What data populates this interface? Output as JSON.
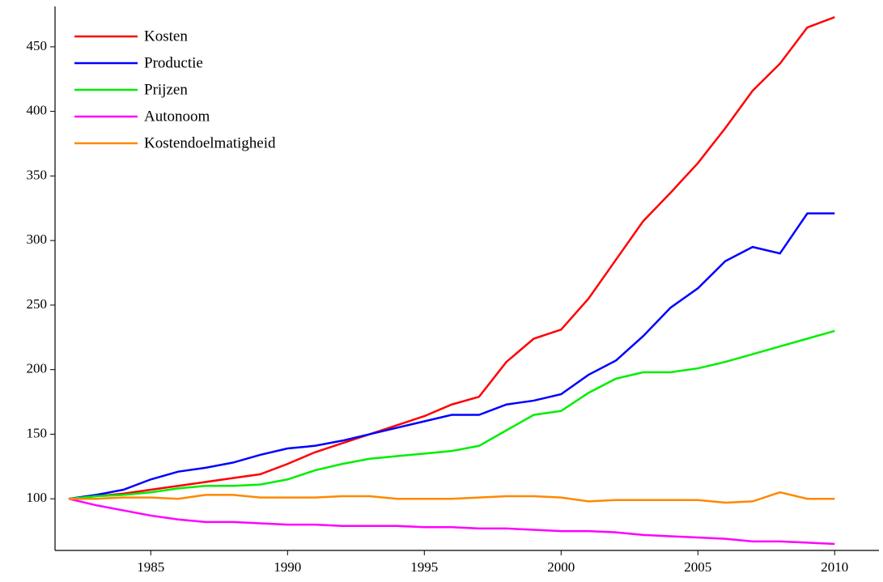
{
  "chart_data": {
    "type": "line",
    "x": [
      1982,
      1983,
      1984,
      1985,
      1986,
      1987,
      1988,
      1989,
      1990,
      1991,
      1992,
      1993,
      1994,
      1995,
      1996,
      1997,
      1998,
      1999,
      2000,
      2001,
      2002,
      2003,
      2004,
      2005,
      2006,
      2007,
      2008,
      2009,
      2010
    ],
    "series": [
      {
        "name": "Kosten",
        "color": "#ff0000",
        "values": [
          100,
          102,
          104,
          107,
          110,
          113,
          116,
          119,
          127,
          136,
          143,
          150,
          157,
          164,
          173,
          179,
          206,
          224,
          231,
          255,
          285,
          315,
          337,
          360,
          387,
          416,
          437,
          465,
          473
        ]
      },
      {
        "name": "Productie",
        "color": "#0000ff",
        "values": [
          100,
          103,
          107,
          115,
          121,
          124,
          128,
          134,
          139,
          141,
          145,
          150,
          155,
          160,
          165,
          165,
          173,
          176,
          181,
          196,
          207,
          226,
          248,
          263,
          284,
          295,
          290,
          321,
          321
        ]
      },
      {
        "name": "Prijzen",
        "color": "#00ee00",
        "values": [
          100,
          102,
          103,
          105,
          108,
          110,
          110,
          111,
          115,
          122,
          127,
          131,
          133,
          135,
          137,
          141,
          153,
          165,
          168,
          182,
          193,
          198,
          198,
          201,
          206,
          212,
          218,
          224,
          230
        ]
      },
      {
        "name": "Autonoom",
        "color": "#ff00ff",
        "values": [
          100,
          95,
          91,
          87,
          84,
          82,
          82,
          81,
          80,
          80,
          79,
          79,
          79,
          78,
          78,
          77,
          77,
          76,
          75,
          75,
          74,
          72,
          71,
          70,
          69,
          67,
          67,
          66,
          65
        ]
      },
      {
        "name": "Kostendoelmatigheid",
        "color": "#ff8800",
        "values": [
          100,
          100,
          101,
          101,
          100,
          103,
          103,
          101,
          101,
          101,
          102,
          102,
          100,
          100,
          100,
          101,
          102,
          102,
          101,
          98,
          99,
          99,
          99,
          99,
          97,
          98,
          105,
          100,
          100
        ]
      }
    ],
    "xlim": [
      1981.5,
      2011.5
    ],
    "xticks": [
      1985,
      1990,
      1995,
      2000,
      2005,
      2010
    ],
    "ylim": [
      60,
      480
    ],
    "yticks": [
      100,
      150,
      200,
      250,
      300,
      350,
      400,
      450
    ],
    "legend": "top-left",
    "grid": false
  }
}
